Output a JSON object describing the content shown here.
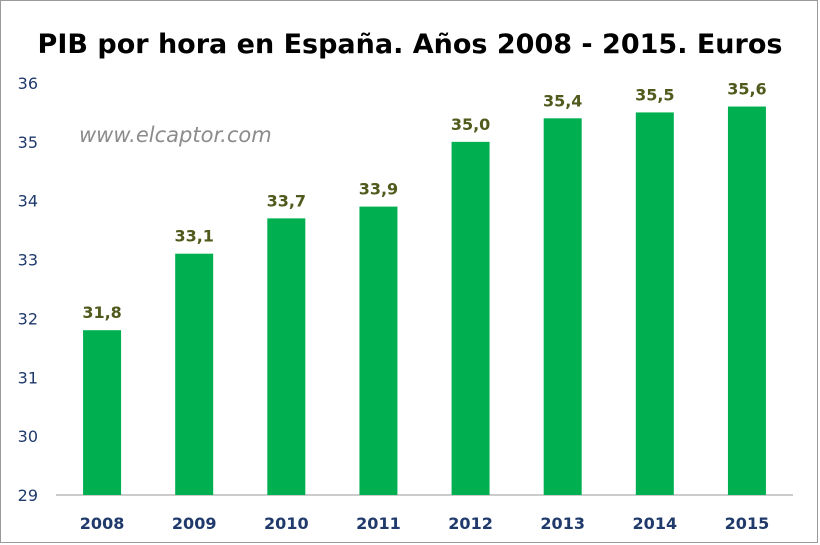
{
  "chart_data": {
    "type": "bar",
    "title": "PIB por hora en España. Años 2008 - 2015. Euros",
    "watermark": "www.elcaptor.com",
    "categories": [
      "2008",
      "2009",
      "2010",
      "2011",
      "2012",
      "2013",
      "2014",
      "2015"
    ],
    "values": [
      31.8,
      33.1,
      33.7,
      33.9,
      35.0,
      35.4,
      35.5,
      35.6
    ],
    "data_labels": [
      "31,8",
      "33,1",
      "33,7",
      "33,9",
      "35,0",
      "35,4",
      "35,5",
      "35,6"
    ],
    "yticks": [
      "29",
      "30",
      "31",
      "32",
      "33",
      "34",
      "35",
      "36"
    ],
    "ylim": [
      29,
      36
    ],
    "xlabel": "",
    "ylabel": "",
    "grid": false,
    "legend": "none",
    "colors": {
      "bar": "#00b050",
      "axis_text": "#1f3a6b",
      "data_label": "#4f5a1c",
      "watermark": "#8c8c8c"
    }
  }
}
